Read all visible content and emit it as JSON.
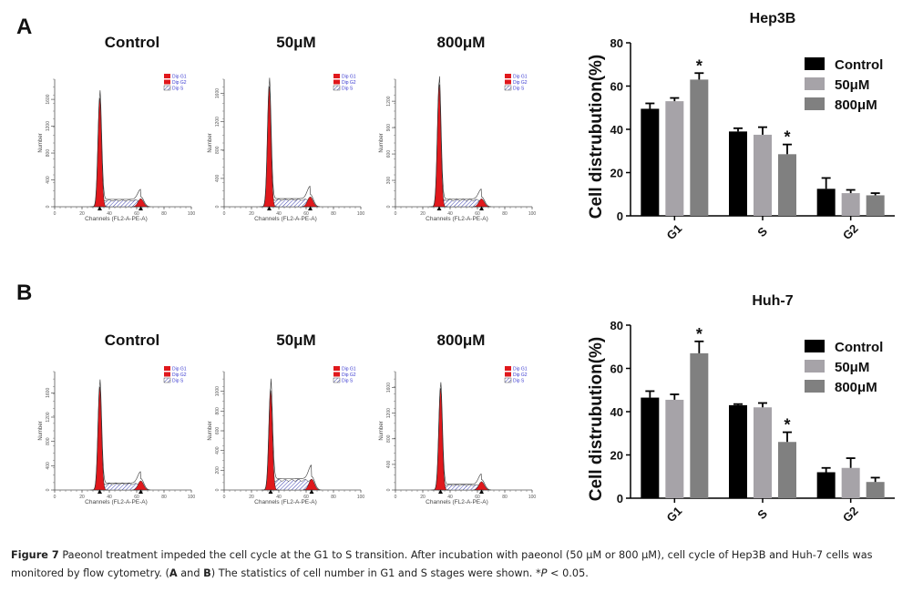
{
  "panels": [
    {
      "letter": "A",
      "cell_line": "Hep3B",
      "conditions": [
        "Control",
        "50μM",
        "800μM"
      ]
    },
    {
      "letter": "B",
      "cell_line": "Huh-7",
      "conditions": [
        "Control",
        "50μM",
        "800μM"
      ]
    }
  ],
  "histogram_common": {
    "xlabel": "Channels (FL2-A-PE-A)",
    "ylabel": "Number",
    "xticks": [
      "0",
      "20",
      "40",
      "60",
      "80",
      "100"
    ],
    "legend": [
      "Dip G1",
      "Dip G2",
      "Dip S"
    ],
    "colors": {
      "g1": "#e0181c",
      "g2": "#e0181c",
      "s_hatch": "#3b3fb0",
      "legend_text": "#3a3ad0"
    }
  },
  "histograms": [
    {
      "panel": "A",
      "condition": "Control",
      "yticks": [
        "0",
        "400",
        "800",
        "1200",
        "1600"
      ],
      "ymax": 1900,
      "g1_peak": 1620,
      "g2_peak": 120,
      "s_level": 105,
      "g1_channel": 33,
      "g2_channel": 63
    },
    {
      "panel": "A",
      "condition": "50μM",
      "yticks": [
        "0",
        "400",
        "800",
        "1200",
        "1600"
      ],
      "ymax": 1800,
      "g1_peak": 1700,
      "g2_peak": 140,
      "s_level": 110,
      "g1_channel": 33,
      "g2_channel": 63
    },
    {
      "panel": "A",
      "condition": "800μM",
      "yticks": [
        "0",
        "300",
        "600",
        "900",
        "1200"
      ],
      "ymax": 1450,
      "g1_peak": 1390,
      "g2_peak": 90,
      "s_level": 85,
      "g1_channel": 32,
      "g2_channel": 63
    },
    {
      "panel": "B",
      "condition": "Control",
      "yticks": [
        "0",
        "400",
        "800",
        "1200",
        "1600"
      ],
      "ymax": 1950,
      "g1_peak": 1700,
      "g2_peak": 150,
      "s_level": 110,
      "g1_channel": 33,
      "g2_channel": 63
    },
    {
      "panel": "B",
      "condition": "50μM",
      "yticks": [
        "0",
        "200",
        "400",
        "600",
        "800",
        "1000"
      ],
      "ymax": 1200,
      "g1_peak": 1010,
      "g2_peak": 110,
      "s_level": 110,
      "g1_channel": 34,
      "g2_channel": 64
    },
    {
      "panel": "B",
      "condition": "800μM",
      "yticks": [
        "0",
        "400",
        "800",
        "1200",
        "1600"
      ],
      "ymax": 1850,
      "g1_peak": 1590,
      "g2_peak": 130,
      "s_level": 85,
      "g1_channel": 33,
      "g2_channel": 63
    }
  ],
  "chart_data": [
    {
      "type": "bar",
      "title": "Hep3B",
      "xlabel": "",
      "ylabel": "Cell distrubution(%)",
      "ylim": [
        0,
        80
      ],
      "yticks": [
        0,
        20,
        40,
        60,
        80
      ],
      "categories": [
        "G1",
        "S",
        "G2"
      ],
      "legend_position": "top-right",
      "series": [
        {
          "name": "Control",
          "color": "#000000",
          "values": [
            49.5,
            39.0,
            12.5
          ],
          "errors": [
            2.5,
            1.5,
            5.0
          ]
        },
        {
          "name": "50μM",
          "color": "#a6a3a8",
          "values": [
            53.0,
            37.5,
            10.5
          ],
          "errors": [
            1.5,
            3.5,
            1.5
          ]
        },
        {
          "name": "800μM",
          "color": "#808080",
          "values": [
            63.0,
            28.5,
            9.5
          ],
          "errors": [
            3.0,
            4.5,
            1.0
          ]
        }
      ],
      "annotations": [
        {
          "text": "*",
          "category": "G1",
          "series": "800μM"
        },
        {
          "text": "*",
          "category": "S",
          "series": "800μM"
        }
      ]
    },
    {
      "type": "bar",
      "title": "Huh-7",
      "xlabel": "",
      "ylabel": "Cell distrubution(%)",
      "ylim": [
        0,
        80
      ],
      "yticks": [
        0,
        20,
        40,
        60,
        80
      ],
      "categories": [
        "G1",
        "S",
        "G2"
      ],
      "legend_position": "top-right",
      "series": [
        {
          "name": "Control",
          "color": "#000000",
          "values": [
            46.5,
            43.0,
            12.0
          ],
          "errors": [
            3.0,
            0.5,
            2.0
          ]
        },
        {
          "name": "50μM",
          "color": "#a6a3a8",
          "values": [
            45.5,
            42.0,
            14.0
          ],
          "errors": [
            2.5,
            2.0,
            4.5
          ]
        },
        {
          "name": "800μM",
          "color": "#808080",
          "values": [
            67.0,
            26.0,
            7.5
          ],
          "errors": [
            5.5,
            4.5,
            2.0
          ]
        }
      ],
      "annotations": [
        {
          "text": "*",
          "category": "G1",
          "series": "800μM"
        },
        {
          "text": "*",
          "category": "S",
          "series": "800μM"
        }
      ]
    }
  ],
  "caption": {
    "label": "Figure 7",
    "line1": " Paeonol treatment impeded the cell cycle at the G1 to S transition. After incubation with paeonol (50 μM or 800 μM), cell cycle of Hep3B and Huh-7 cells was",
    "line2_pre": "monitored by flow cytometry. (",
    "line2_a": "A",
    "line2_and": " and ",
    "line2_b": "B",
    "line2_post": ") The statistics of cell number in G1 and S stages were shown. *",
    "line2_p": "P",
    "line2_end": " < 0.05."
  }
}
